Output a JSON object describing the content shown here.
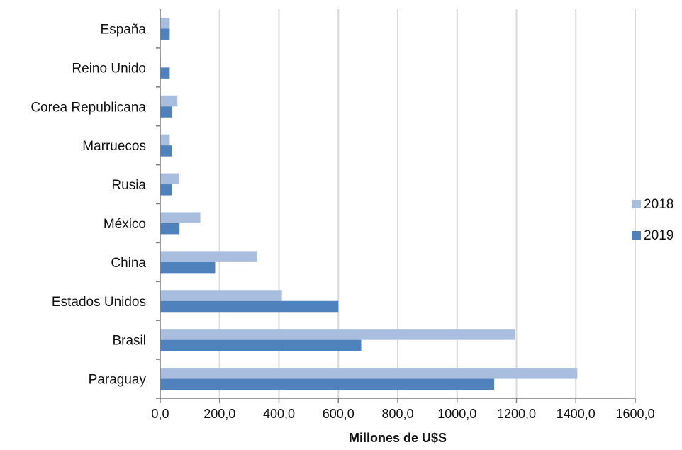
{
  "chart_data": {
    "type": "bar",
    "orientation": "horizontal",
    "categories": [
      "Paraguay",
      "Brasil",
      "Estados Unidos",
      "China",
      "México",
      "Rusia",
      "Marruecos",
      "Corea Republicana",
      "Reino Unido",
      "España"
    ],
    "series": [
      {
        "name": "2018",
        "color": "#A9BEDF",
        "values": [
          1405,
          1195,
          410,
          327,
          135,
          64,
          32,
          58,
          2,
          32
        ]
      },
      {
        "name": "2019",
        "color": "#4F81BD",
        "values": [
          1125,
          677,
          600,
          185,
          65,
          40,
          40,
          40,
          32,
          32
        ]
      }
    ],
    "xlabel": "Millones de U$S",
    "xlim": [
      0,
      1600
    ],
    "xticks": [
      0,
      200,
      400,
      600,
      800,
      1000,
      1200,
      1400,
      1600
    ],
    "xtick_labels": [
      "0,0",
      "200,0",
      "400,0",
      "600,0",
      "800,0",
      "1000,0",
      "1200,0",
      "1400,0",
      "1600,0"
    ],
    "grid": "vertical",
    "legend": "right"
  }
}
